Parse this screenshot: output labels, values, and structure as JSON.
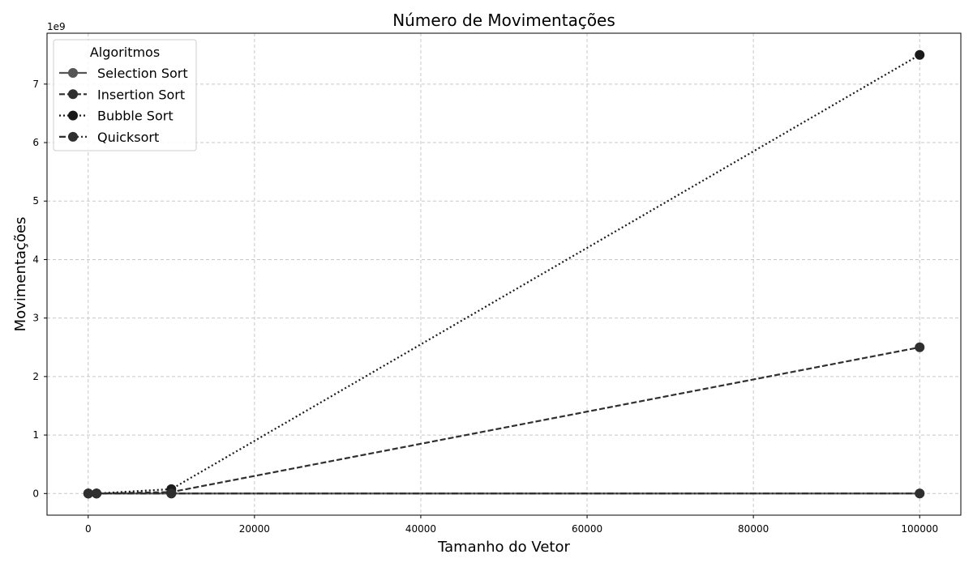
{
  "chart_data": {
    "type": "line",
    "title": "Número de Movimentações",
    "xlabel": "Tamanho do Vetor",
    "ylabel": "Movimentações",
    "y_scale_label": "1e9",
    "y_scale_factor": 1000000000,
    "xlim": [
      -4950,
      104950
    ],
    "ylim": [
      -370000000,
      7870000000
    ],
    "x_ticks": [
      0,
      20000,
      40000,
      60000,
      80000,
      100000
    ],
    "x_tick_labels": [
      "0",
      "20000",
      "40000",
      "60000",
      "80000",
      "100000"
    ],
    "y_ticks": [
      0,
      1000000000,
      2000000000,
      3000000000,
      4000000000,
      5000000000,
      6000000000,
      7000000000
    ],
    "y_tick_labels": [
      "0",
      "1",
      "2",
      "3",
      "4",
      "5",
      "6",
      "7"
    ],
    "grid": true,
    "legend": {
      "title": "Algoritmos",
      "placement": "top-left"
    },
    "x": [
      10,
      1000,
      10000,
      100000
    ],
    "series": [
      {
        "name": "Selection Sort",
        "values": [
          30,
          3000,
          30000,
          300000
        ],
        "color": "#555555",
        "dash": "solid"
      },
      {
        "name": "Insertion Sort",
        "values": [
          25,
          250000,
          25000000,
          2500000000
        ],
        "color": "#2f2f2f",
        "dash": "dashed"
      },
      {
        "name": "Bubble Sort",
        "values": [
          75,
          750000,
          75000000,
          7500000000
        ],
        "color": "#1a1a1a",
        "dash": "dotted"
      },
      {
        "name": "Quicksort",
        "values": [
          40,
          8000,
          110000,
          1300000
        ],
        "color": "#2f2f2f",
        "dash": "dashdot"
      }
    ]
  }
}
